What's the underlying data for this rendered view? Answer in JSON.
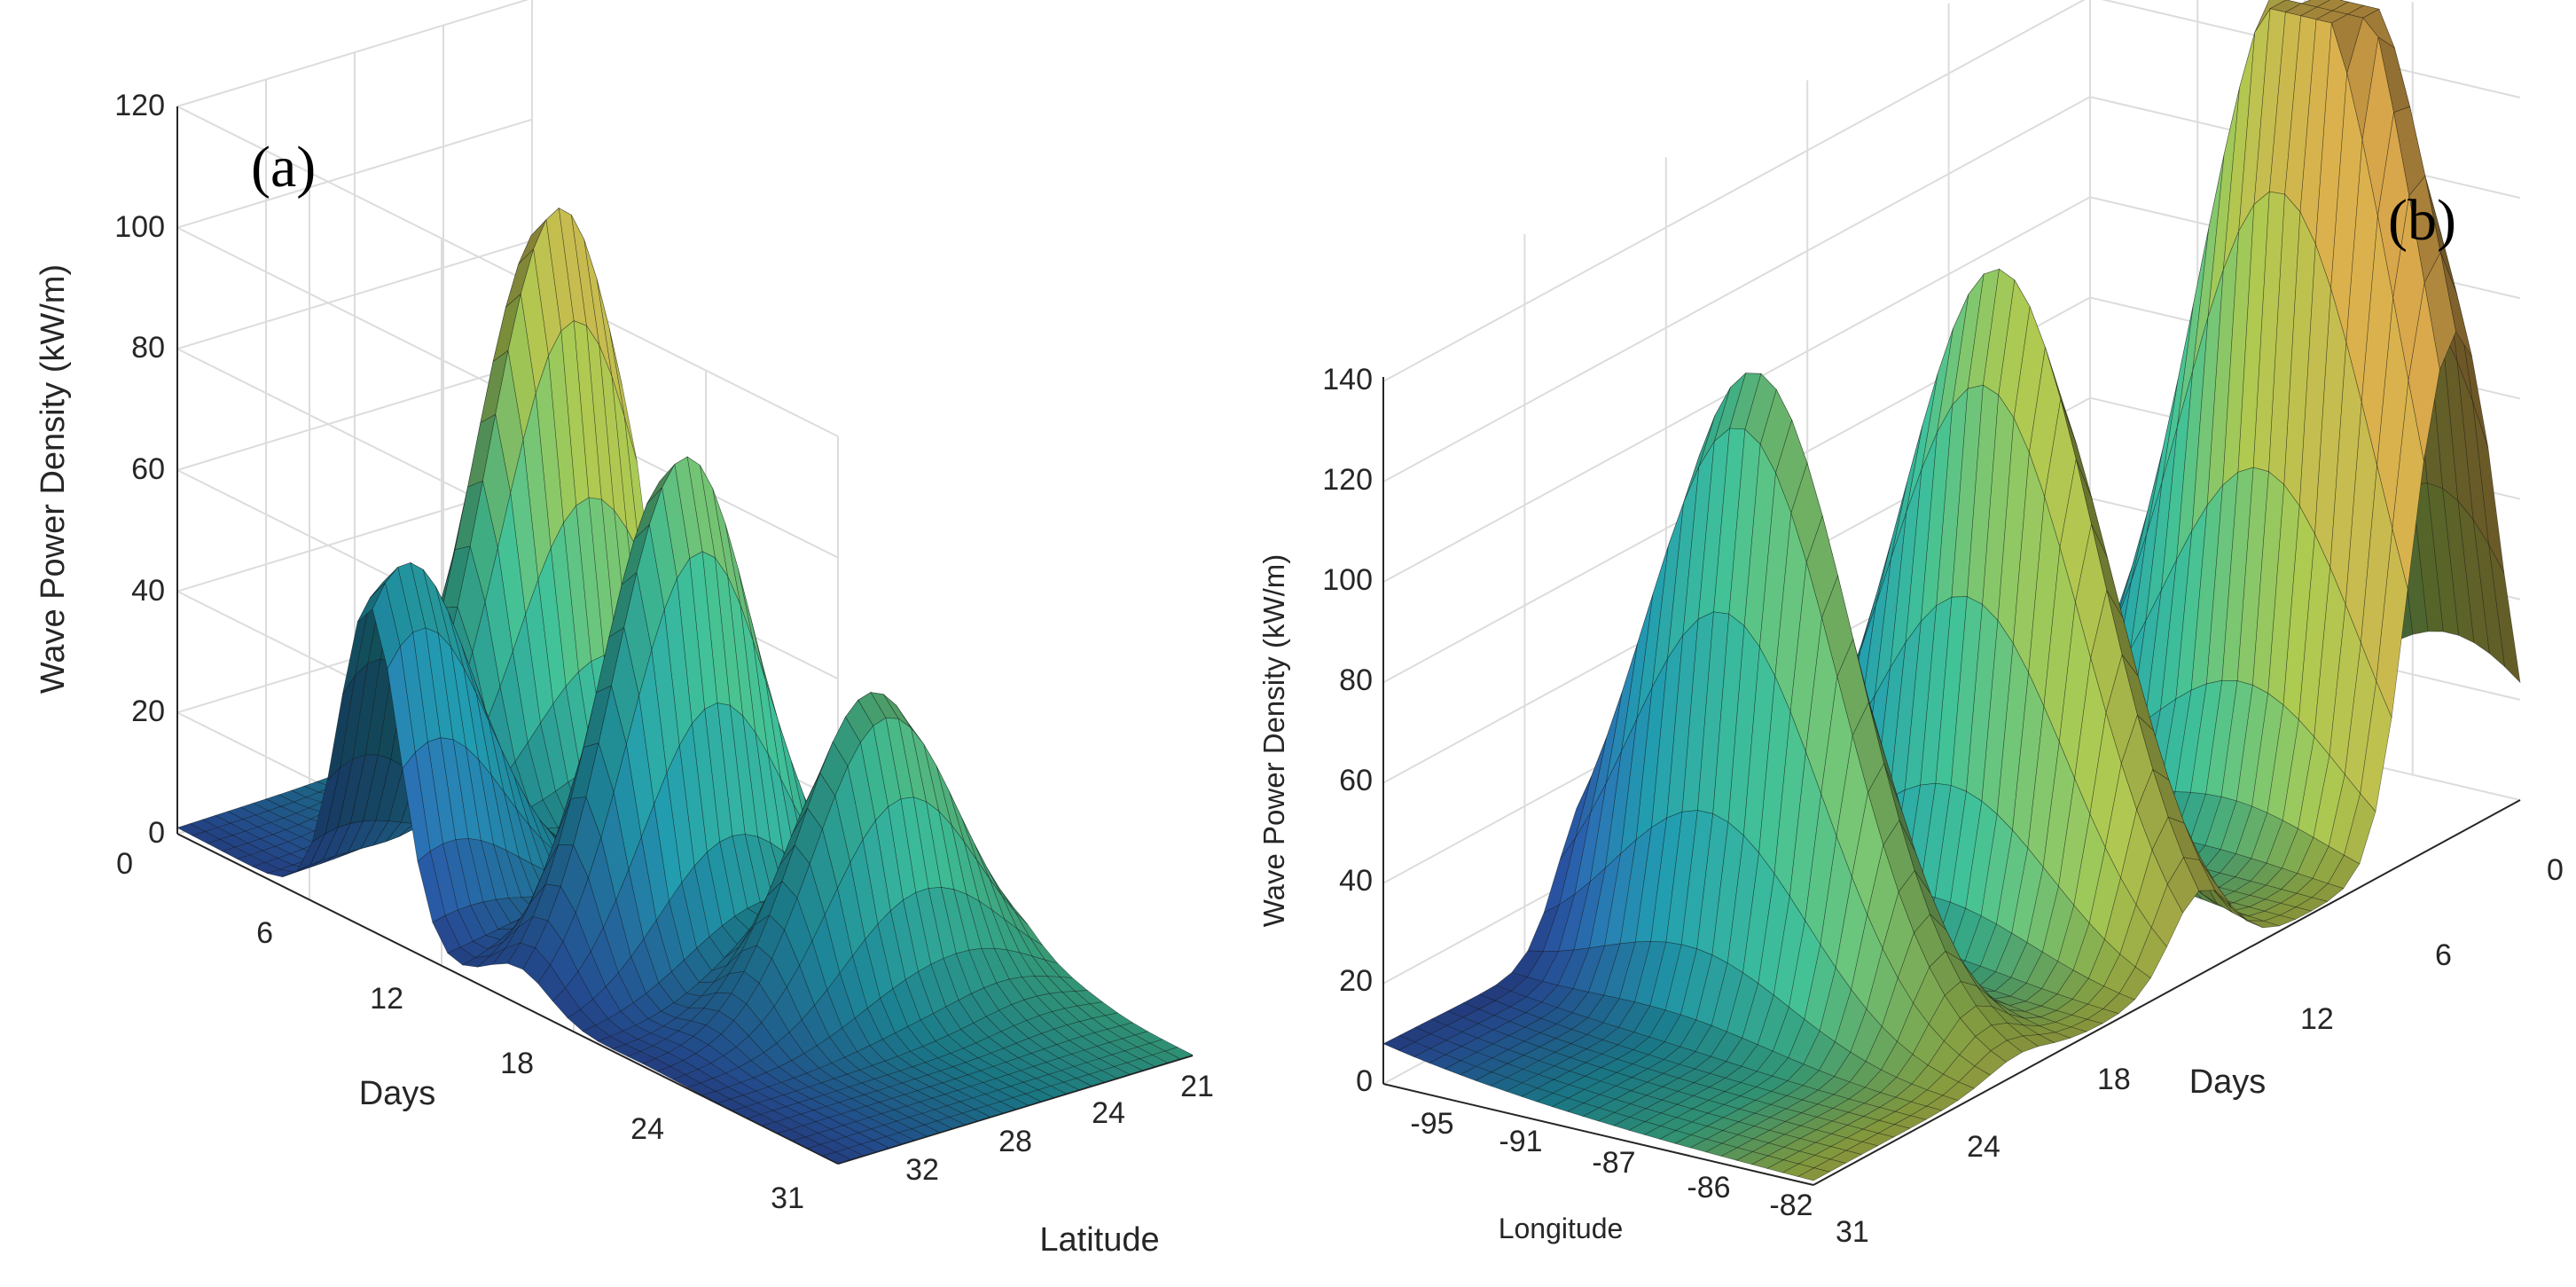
{
  "figure": {
    "background": "#ffffff",
    "colormap": [
      "#2a1a6b",
      "#2a5aa8",
      "#1f8fa0",
      "#3bb08a",
      "#9db84a",
      "#c8a046",
      "#b57a3c"
    ],
    "edge_color": "#111111",
    "grid_color": "#dcdcdc",
    "axis_color": "#262626"
  },
  "chart_data": [
    {
      "type": "surface3d",
      "panel_label": "(a)",
      "zlabel": "Wave Power Density (kW/m)",
      "xlabel": "Days",
      "ylabel": "Latitude",
      "zlim": [
        0,
        120
      ],
      "z_ticks": [
        "0",
        "20",
        "40",
        "60",
        "80",
        "100",
        "120"
      ],
      "days_ticks": [
        "0",
        "6",
        "12",
        "18",
        "24",
        "31"
      ],
      "lat_ticks": [
        "32",
        "28",
        "24",
        "21"
      ],
      "grid": true,
      "peaks": [
        {
          "day": 4,
          "lat": 23,
          "value": 96
        },
        {
          "day": 9,
          "lat": 31,
          "value": 59
        },
        {
          "day": 16,
          "lat": 27,
          "value": 83
        },
        {
          "day": 22,
          "lat": 25,
          "value": 50
        }
      ]
    },
    {
      "type": "surface3d",
      "panel_label": "(b)",
      "zlabel": "Wave Power Density (kW/m)",
      "xlabel": "Longitude",
      "ylabel": "Days",
      "zlim": [
        0,
        140
      ],
      "z_ticks": [
        "0",
        "20",
        "40",
        "60",
        "80",
        "100",
        "120",
        "140"
      ],
      "lon_ticks": [
        "-95",
        "-91",
        "-87",
        "-86",
        "-82"
      ],
      "days_ticks": [
        "0",
        "6",
        "12",
        "18",
        "24",
        "31"
      ],
      "grid": true,
      "peaks": [
        {
          "day": 22,
          "lon": -90,
          "value": 125
        },
        {
          "day": 14,
          "lon": -88,
          "value": 130
        },
        {
          "day": 4,
          "lon": -86,
          "value": 155
        },
        {
          "day": 2,
          "lon": -84,
          "value": 90
        }
      ]
    }
  ]
}
